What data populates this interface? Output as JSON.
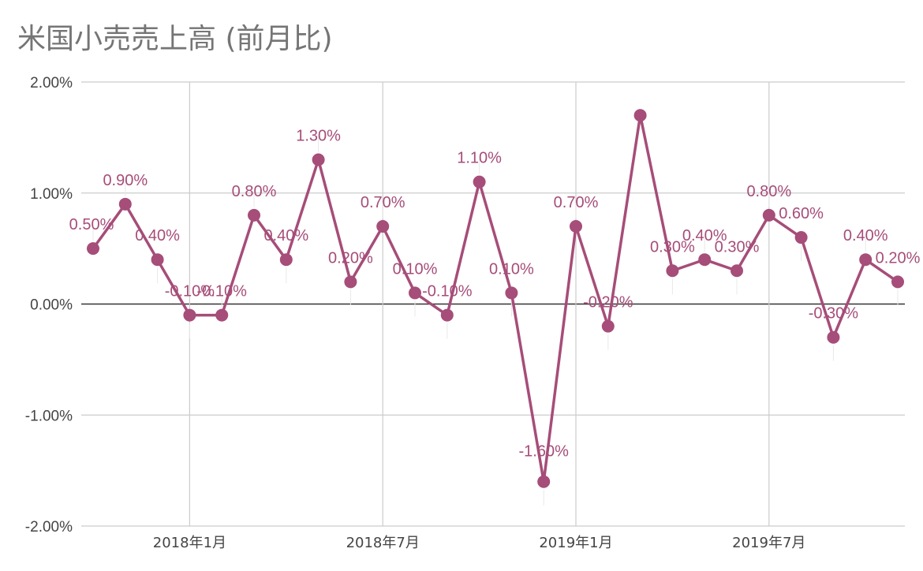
{
  "chart_data": {
    "type": "line",
    "title": "米国小売売上高 (前月比)",
    "xlabel": "",
    "ylabel": "",
    "y_unit": "%",
    "ylim": [
      -2.0,
      2.0
    ],
    "yticks": [
      2.0,
      1.0,
      0.0,
      -1.0,
      -2.0
    ],
    "ytick_labels": [
      "2.00%",
      "1.00%",
      "0.00%",
      "-1.00%",
      "-2.00%"
    ],
    "x_tick_labels": [
      "2018年1月",
      "2018年7月",
      "2019年1月",
      "2019年7月"
    ],
    "x_tick_months": [
      "2018-01",
      "2018-07",
      "2019-01",
      "2019-07"
    ],
    "x": [
      "2017-10",
      "2017-11",
      "2017-12",
      "2018-01",
      "2018-02",
      "2018-03",
      "2018-04",
      "2018-05",
      "2018-06",
      "2018-07",
      "2018-08",
      "2018-09",
      "2018-10",
      "2018-11",
      "2018-12",
      "2019-01",
      "2019-02",
      "2019-03",
      "2019-04",
      "2019-05",
      "2019-06",
      "2019-07",
      "2019-08",
      "2019-09",
      "2019-10",
      "2019-11"
    ],
    "series": [
      {
        "name": "",
        "color": "#a64d79",
        "values": [
          0.5,
          0.9,
          0.4,
          -0.1,
          -0.1,
          0.8,
          0.4,
          1.3,
          0.2,
          0.7,
          0.1,
          -0.1,
          1.1,
          0.1,
          -1.6,
          0.7,
          -0.2,
          1.7,
          0.3,
          0.4,
          0.3,
          0.8,
          0.6,
          -0.3,
          0.4,
          0.2
        ],
        "data_labels": [
          "0.50%",
          "0.90%",
          "0.40%",
          "-0.10%",
          "-0.10%",
          "0.80%",
          "0.40%",
          "1.30%",
          "0.20%",
          "0.70%",
          "0.10%",
          "-0.10%",
          "1.10%",
          "0.10%",
          "-1.60%",
          "0.70%",
          "-0.20%",
          "",
          "0.30%",
          "0.40%",
          "0.30%",
          "0.80%",
          "0.60%",
          "-0.30%",
          "0.40%",
          "0.20%"
        ]
      }
    ],
    "grid": true,
    "legend": "none"
  }
}
